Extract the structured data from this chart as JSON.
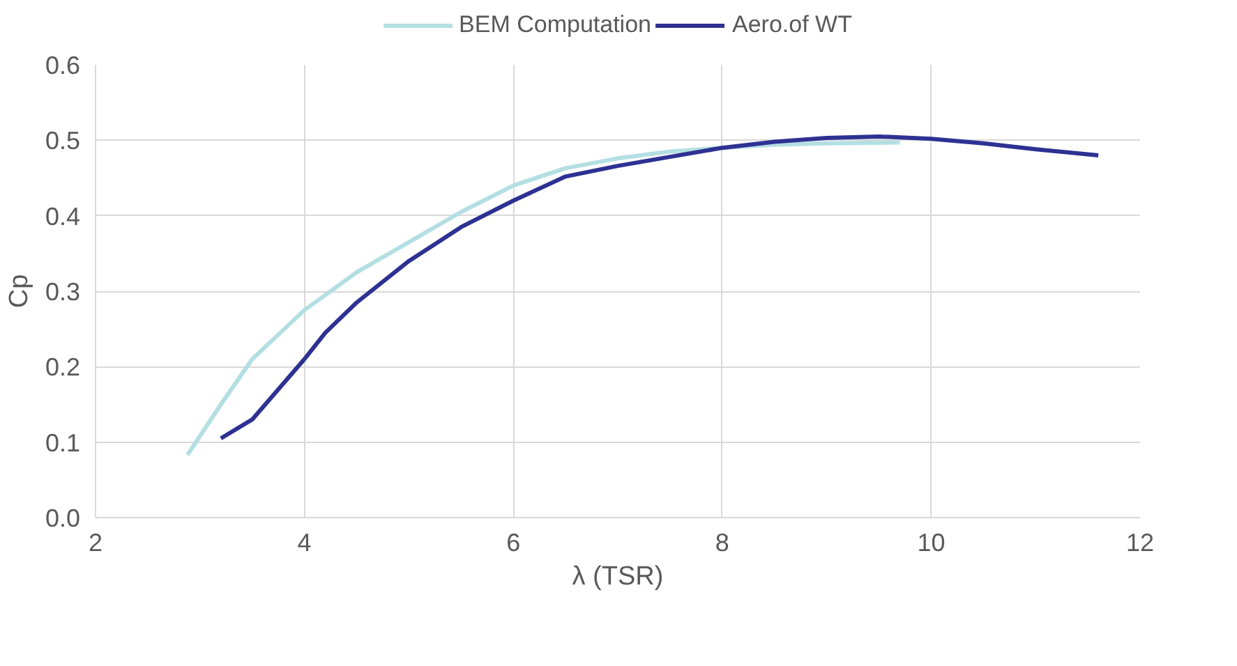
{
  "chart_data": {
    "type": "line",
    "xlabel": "λ (TSR)",
    "ylabel": "Cp",
    "xlim": [
      2,
      12
    ],
    "xticks": [
      2,
      4,
      6,
      8,
      10,
      12
    ],
    "ylim": [
      0,
      0.6
    ],
    "yticks": [
      {
        "value": 0,
        "label": "0.0"
      },
      0.1,
      0.2,
      0.3,
      0.4,
      0.5,
      0.6
    ],
    "grid": true,
    "legend": "top",
    "marker": "none",
    "line_style": "solid",
    "series": [
      {
        "name": "BEM Computation",
        "color": "#b4dfe2",
        "x": [
          2.88,
          3.2,
          3.5,
          4,
          4.5,
          5,
          5.5,
          6,
          6.5,
          7,
          7.5,
          8,
          8.5,
          9,
          9.7
        ],
        "values": [
          0.083,
          0.15,
          0.21,
          0.275,
          0.325,
          0.365,
          0.405,
          0.44,
          0.463,
          0.476,
          0.485,
          0.49,
          0.494,
          0.496,
          0.497
        ]
      },
      {
        "name": "Aero.of WT",
        "color": "#2e3192",
        "x": [
          3.2,
          3.5,
          4,
          4.2,
          4.5,
          5,
          5.5,
          6,
          6.5,
          7,
          7.5,
          8,
          8.5,
          9,
          9.5,
          10,
          10.5,
          11,
          11.6
        ],
        "values": [
          0.105,
          0.13,
          0.21,
          0.245,
          0.285,
          0.34,
          0.385,
          0.42,
          0.452,
          0.466,
          0.478,
          0.49,
          0.498,
          0.503,
          0.505,
          0.502,
          0.496,
          0.488,
          0.48
        ]
      }
    ]
  }
}
